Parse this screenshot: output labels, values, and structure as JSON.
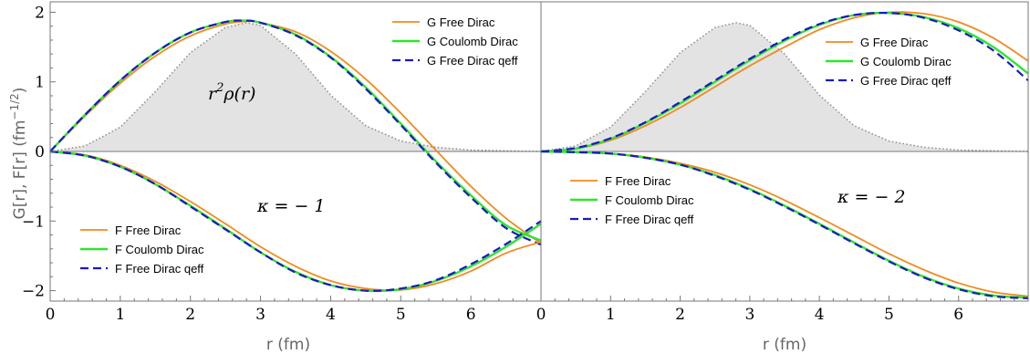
{
  "figure": {
    "ylabel": "G[r], F[r]  (fm",
    "ylabel_exp": "−1/2",
    "ylabel_close": ")"
  },
  "colors": {
    "free": "#f28a1e",
    "coulomb": "#2ee52e",
    "qeff": "#1a1abf",
    "density_fill": "#e3e3e3",
    "density_line": "#8c8c8c"
  },
  "chart_data": [
    {
      "type": "line",
      "id": "left",
      "xlabel": "r (fm)",
      "ylabel": "G[r], F[r]  (fm−1/2)",
      "xlim": [
        0,
        7
      ],
      "ylim": [
        -2.15,
        2.15
      ],
      "xticks": [
        "0",
        "1",
        "2",
        "3",
        "4",
        "5",
        "6"
      ],
      "yticks": [
        "−2",
        "−1",
        "0",
        "1",
        "2"
      ],
      "annotations": {
        "density": "r²ρ(r)",
        "density_base": "r",
        "density_sup": "2",
        "density_rest": "ρ(r)",
        "kappa": "κ = − 1"
      },
      "legend_upper": [
        "G Free Dirac",
        "G Coulomb Dirac",
        "G Free Dirac qeff"
      ],
      "legend_lower": [
        "F Free Dirac",
        "F Coulomb Dirac",
        "F Free Dirac qeff"
      ],
      "series": [
        {
          "name": "G Free Dirac",
          "x": [
            0,
            0.5,
            1,
            1.5,
            2,
            2.5,
            2.8,
            3,
            3.5,
            4,
            4.5,
            5,
            5.5,
            6,
            6.5,
            7
          ],
          "y": [
            0,
            0.51,
            0.98,
            1.37,
            1.66,
            1.83,
            1.87,
            1.85,
            1.72,
            1.44,
            1.04,
            0.55,
            0.02,
            -0.5,
            -0.96,
            -1.32
          ]
        },
        {
          "name": "G Coulomb Dirac",
          "x": [
            0,
            0.5,
            1,
            1.5,
            2,
            2.5,
            2.75,
            3,
            3.5,
            4,
            4.5,
            5,
            5.5,
            6,
            6.5,
            7
          ],
          "y": [
            0,
            0.53,
            1.02,
            1.42,
            1.71,
            1.86,
            1.88,
            1.85,
            1.68,
            1.36,
            0.92,
            0.4,
            -0.14,
            -0.63,
            -1.06,
            -1.28
          ]
        },
        {
          "name": "G Free Dirac qeff",
          "x": [
            0,
            0.5,
            1,
            1.5,
            2,
            2.5,
            2.75,
            3,
            3.5,
            4,
            4.5,
            5,
            5.5,
            6,
            6.5,
            7
          ],
          "y": [
            0,
            0.53,
            1.02,
            1.42,
            1.71,
            1.86,
            1.88,
            1.85,
            1.67,
            1.35,
            0.9,
            0.38,
            -0.16,
            -0.66,
            -1.1,
            -1.34
          ]
        },
        {
          "name": "F Free Dirac",
          "x": [
            0,
            0.5,
            1,
            1.5,
            2,
            2.5,
            3,
            3.5,
            4,
            4.5,
            5,
            5.5,
            6,
            6.5,
            7
          ],
          "y": [
            0,
            -0.05,
            -0.2,
            -0.43,
            -0.72,
            -1.04,
            -1.37,
            -1.65,
            -1.86,
            -1.97,
            -1.99,
            -1.9,
            -1.72,
            -1.46,
            -1.3
          ]
        },
        {
          "name": "F Coulomb Dirac",
          "x": [
            0,
            0.5,
            1,
            1.5,
            2,
            2.5,
            3,
            3.5,
            4,
            4.5,
            5,
            5.5,
            6,
            6.5,
            7
          ],
          "y": [
            0,
            -0.06,
            -0.22,
            -0.47,
            -0.78,
            -1.11,
            -1.45,
            -1.73,
            -1.92,
            -2.0,
            -1.98,
            -1.86,
            -1.65,
            -1.37,
            -1.04
          ]
        },
        {
          "name": "F Free Dirac qeff",
          "x": [
            0,
            0.5,
            1,
            1.5,
            2,
            2.5,
            3,
            3.5,
            4,
            4.5,
            5,
            5.5,
            6,
            6.5,
            7
          ],
          "y": [
            0,
            -0.06,
            -0.22,
            -0.47,
            -0.79,
            -1.12,
            -1.45,
            -1.74,
            -1.92,
            -2.0,
            -1.97,
            -1.85,
            -1.62,
            -1.33,
            -1.0
          ]
        }
      ],
      "density": {
        "x": [
          0,
          0.5,
          1,
          1.5,
          2,
          2.5,
          2.8,
          3,
          3.5,
          4,
          4.5,
          5,
          5.5,
          6,
          6.5,
          7
        ],
        "y": [
          0,
          0.08,
          0.35,
          0.86,
          1.42,
          1.78,
          1.85,
          1.81,
          1.4,
          0.81,
          0.37,
          0.15,
          0.06,
          0.02,
          0.01,
          0
        ]
      }
    },
    {
      "type": "line",
      "id": "right",
      "xlabel": "r (fm)",
      "xlim": [
        0,
        7
      ],
      "ylim": [
        -2.15,
        2.15
      ],
      "xticks": [
        "0",
        "1",
        "2",
        "3",
        "4",
        "5",
        "6"
      ],
      "annotations": {
        "kappa": "κ = − 2"
      },
      "legend_upper": [
        "G Free Dirac",
        "G Coulomb Dirac",
        "G Free Dirac qeff"
      ],
      "legend_lower": [
        "F Free Dirac",
        "F Coulomb Dirac",
        "F Free Dirac qeff"
      ],
      "series": [
        {
          "name": "G Free Dirac",
          "x": [
            0,
            0.5,
            1,
            1.5,
            2,
            2.5,
            3,
            3.5,
            4,
            4.5,
            5,
            5.5,
            6,
            6.5,
            7
          ],
          "y": [
            0,
            0.04,
            0.16,
            0.37,
            0.63,
            0.93,
            1.23,
            1.5,
            1.75,
            1.92,
            2.0,
            1.98,
            1.86,
            1.63,
            1.3
          ]
        },
        {
          "name": "G Coulomb Dirac",
          "x": [
            0,
            0.5,
            1,
            1.5,
            2,
            2.5,
            3,
            3.5,
            4,
            4.5,
            5,
            5.5,
            6,
            6.5,
            7
          ],
          "y": [
            0,
            0.04,
            0.18,
            0.41,
            0.69,
            1.0,
            1.31,
            1.59,
            1.82,
            1.96,
            1.99,
            1.93,
            1.77,
            1.5,
            1.12
          ]
        },
        {
          "name": "G Free Dirac qeff",
          "x": [
            0,
            0.5,
            1,
            1.5,
            2,
            2.5,
            3,
            3.5,
            4,
            4.5,
            5,
            5.5,
            6,
            6.5,
            7
          ],
          "y": [
            0,
            0.05,
            0.19,
            0.42,
            0.71,
            1.02,
            1.33,
            1.61,
            1.83,
            1.96,
            1.99,
            1.92,
            1.74,
            1.45,
            1.02
          ]
        },
        {
          "name": "F Free Dirac",
          "x": [
            0,
            0.5,
            1,
            1.5,
            2,
            2.5,
            3,
            3.5,
            4,
            4.5,
            5,
            5.5,
            6,
            6.5,
            7
          ],
          "y": [
            0,
            -0.01,
            -0.03,
            -0.08,
            -0.17,
            -0.3,
            -0.48,
            -0.7,
            -0.95,
            -1.21,
            -1.47,
            -1.7,
            -1.89,
            -2.02,
            -2.08
          ]
        },
        {
          "name": "F Coulomb Dirac",
          "x": [
            0,
            0.5,
            1,
            1.5,
            2,
            2.5,
            3,
            3.5,
            4,
            4.5,
            5,
            5.5,
            6,
            6.5,
            7
          ],
          "y": [
            0,
            -0.01,
            -0.03,
            -0.09,
            -0.19,
            -0.34,
            -0.54,
            -0.78,
            -1.04,
            -1.31,
            -1.57,
            -1.8,
            -1.97,
            -2.07,
            -2.1
          ]
        },
        {
          "name": "F Free Dirac qeff",
          "x": [
            0,
            0.5,
            1,
            1.5,
            2,
            2.5,
            3,
            3.5,
            4,
            4.5,
            5,
            5.5,
            6,
            6.5,
            7
          ],
          "y": [
            0,
            -0.01,
            -0.03,
            -0.09,
            -0.19,
            -0.35,
            -0.55,
            -0.79,
            -1.05,
            -1.32,
            -1.58,
            -1.81,
            -1.98,
            -2.08,
            -2.11
          ]
        }
      ],
      "density": {
        "x": [
          0,
          0.5,
          1,
          1.5,
          2,
          2.5,
          2.8,
          3,
          3.5,
          4,
          4.5,
          5,
          5.5,
          6,
          6.5,
          7
        ],
        "y": [
          0,
          0.08,
          0.35,
          0.86,
          1.42,
          1.78,
          1.85,
          1.81,
          1.4,
          0.81,
          0.37,
          0.15,
          0.06,
          0.02,
          0.01,
          0
        ]
      }
    }
  ]
}
